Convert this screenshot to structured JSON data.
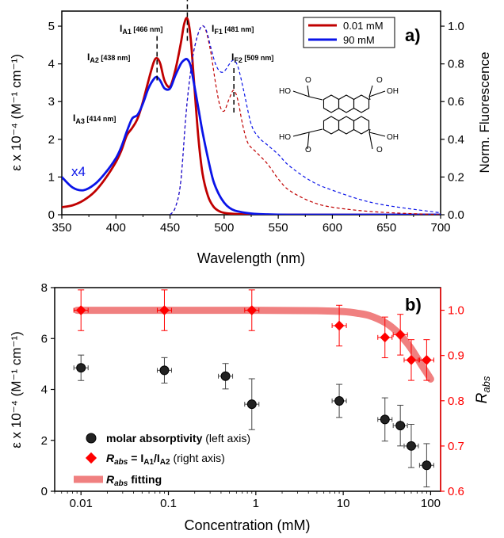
{
  "colors": {
    "red": "#c00000",
    "blue": "#0a14e8",
    "diamond": "#ff0000",
    "fit": "#f08080",
    "axis_right_b": "#ff0000"
  },
  "chart_data": [
    {
      "type": "line",
      "panel_label": "a)",
      "xlabel": "Wavelength (nm)",
      "ylabel_left": "ε x 10⁻⁴ (M⁻¹ cm⁻¹)",
      "ylabel_right": "Norm. Fluorescence",
      "xlim": [
        350,
        700
      ],
      "ylim_left": [
        0,
        5.4
      ],
      "ylim_right": [
        0,
        1.08
      ],
      "xticks": [
        "350",
        "400",
        "450",
        "500",
        "550",
        "600",
        "650",
        "700"
      ],
      "yticks_left": [
        "0",
        "1",
        "2",
        "3",
        "4",
        "5"
      ],
      "yticks_right": [
        "0.0",
        "0.2",
        "0.4",
        "0.6",
        "0.8",
        "1.0"
      ],
      "legend": [
        "0.01 mM",
        "90 mM"
      ],
      "blue_note": "x4",
      "peak_labels": [
        {
          "main": "I",
          "sub": "A1",
          "nm": " [466 nm]"
        },
        {
          "main": "I",
          "sub": "A2",
          "nm": " [438 nm]"
        },
        {
          "main": "I",
          "sub": "A3",
          "nm": " [414 nm]"
        },
        {
          "main": "I",
          "sub": "F1",
          "nm": " [481 nm]"
        },
        {
          "main": "I",
          "sub": "F2",
          "nm": " [509 nm]"
        }
      ],
      "peak_markers_nm": [
        466,
        438,
        509
      ],
      "series": [
        {
          "name": "0.01 mM",
          "kind": "absorbance",
          "x": [
            350,
            360,
            370,
            380,
            390,
            400,
            405,
            410,
            415,
            420,
            425,
            430,
            435,
            438,
            441,
            445,
            450,
            455,
            460,
            463,
            466,
            469,
            472,
            476,
            480,
            485,
            490,
            495,
            500,
            510,
            520,
            540,
            560,
            600,
            700
          ],
          "y": [
            0.2,
            0.25,
            0.38,
            0.6,
            0.95,
            1.4,
            1.7,
            2.1,
            2.3,
            2.55,
            3.0,
            3.55,
            4.05,
            4.15,
            4.0,
            3.55,
            3.4,
            3.85,
            4.55,
            5.05,
            5.2,
            4.7,
            3.6,
            2.1,
            1.1,
            0.5,
            0.22,
            0.1,
            0.05,
            0.02,
            0.01,
            0,
            0,
            0,
            0
          ]
        },
        {
          "name": "90 mM",
          "kind": "absorbance",
          "x": [
            350,
            360,
            370,
            380,
            390,
            400,
            405,
            410,
            415,
            420,
            425,
            430,
            435,
            438,
            441,
            445,
            450,
            455,
            460,
            463,
            466,
            469,
            472,
            476,
            480,
            485,
            490,
            495,
            500,
            505,
            510,
            520,
            530,
            540,
            560,
            600,
            700
          ],
          "y": [
            1.0,
            0.72,
            0.65,
            0.8,
            1.1,
            1.5,
            1.8,
            2.2,
            2.55,
            2.65,
            2.95,
            3.35,
            3.6,
            3.65,
            3.55,
            3.35,
            3.35,
            3.7,
            4.0,
            4.1,
            4.12,
            3.95,
            3.5,
            2.85,
            2.2,
            1.5,
            0.9,
            0.55,
            0.32,
            0.18,
            0.11,
            0.05,
            0.02,
            0.01,
            0,
            0,
            0
          ]
        },
        {
          "name": "0.01 mM",
          "kind": "fluorescence",
          "x": [
            450,
            455,
            460,
            465,
            470,
            474,
            478,
            481,
            484,
            488,
            492,
            496,
            500,
            505,
            509,
            513,
            517,
            522,
            530,
            540,
            550,
            560,
            580,
            600,
            640,
            700
          ],
          "y": [
            0,
            0.04,
            0.18,
            0.55,
            0.8,
            0.92,
            0.99,
            1.0,
            0.96,
            0.85,
            0.7,
            0.58,
            0.55,
            0.62,
            0.66,
            0.6,
            0.48,
            0.38,
            0.33,
            0.27,
            0.19,
            0.13,
            0.07,
            0.04,
            0.015,
            0
          ]
        },
        {
          "name": "90 mM",
          "kind": "fluorescence",
          "x": [
            450,
            455,
            460,
            465,
            470,
            474,
            478,
            481,
            484,
            488,
            492,
            496,
            500,
            505,
            509,
            513,
            518,
            525,
            532,
            540,
            550,
            560,
            580,
            600,
            640,
            700
          ],
          "y": [
            0,
            0.04,
            0.18,
            0.55,
            0.8,
            0.92,
            0.99,
            1.0,
            0.97,
            0.88,
            0.8,
            0.76,
            0.76,
            0.8,
            0.82,
            0.78,
            0.66,
            0.48,
            0.41,
            0.37,
            0.32,
            0.26,
            0.18,
            0.13,
            0.06,
            0.01
          ]
        }
      ]
    },
    {
      "type": "scatter",
      "panel_label": "b)",
      "xlabel": "Concentration (mM)",
      "ylabel_left": "ε x 10⁻⁴ (M⁻¹ cm⁻¹)",
      "ylabel_right": "R",
      "ylabel_right_sub": "abs",
      "xscale": "log",
      "xlim": [
        0.005,
        130
      ],
      "ylim_left": [
        0,
        8
      ],
      "ylim_right": [
        0.6,
        1.05
      ],
      "xticks": [
        "0.01",
        "0.1",
        "1",
        "10",
        "100"
      ],
      "yticks_left": [
        "0",
        "2",
        "4",
        "6",
        "8"
      ],
      "yticks_right": [
        "0.6",
        "0.7",
        "0.8",
        "0.9",
        "1.0"
      ],
      "legend": [
        {
          "bold": "molar absorptivity",
          "normal": " (left axis)"
        },
        {
          "boldital": "R",
          "sub": "abs",
          "bold": " = I",
          "sub2": "A1",
          "bold2": "/I",
          "sub3": "A2",
          "normal": " (right axis)"
        },
        {
          "boldital": "R",
          "sub": "abs",
          "bold": " fitting"
        }
      ],
      "series": [
        {
          "name": "molar absorptivity",
          "x": [
            0.01,
            0.09,
            0.45,
            0.9,
            9,
            30,
            45,
            60,
            90
          ],
          "y": [
            4.85,
            4.75,
            4.52,
            3.42,
            3.55,
            2.82,
            2.58,
            1.78,
            1.02
          ],
          "yerr": [
            0.5,
            0.5,
            0.5,
            1.0,
            0.65,
            0.85,
            0.8,
            0.85,
            0.85
          ]
        },
        {
          "name": "R abs",
          "x": [
            0.01,
            0.09,
            0.9,
            9,
            30,
            45,
            60,
            90
          ],
          "y": [
            1.0,
            1.0,
            1.0,
            0.966,
            0.94,
            0.946,
            0.89,
            0.89
          ],
          "yerr": [
            0.045,
            0.045,
            0.045,
            0.045,
            0.045,
            0.045,
            0.045,
            0.045
          ]
        },
        {
          "name": "R abs fitting",
          "x": [
            0.009,
            0.1,
            1,
            5,
            10,
            15,
            20,
            30,
            40,
            50,
            60,
            70,
            80,
            90,
            100
          ],
          "y": [
            1.0,
            1.0,
            1.0,
            0.999,
            0.997,
            0.993,
            0.988,
            0.973,
            0.955,
            0.935,
            0.915,
            0.895,
            0.877,
            0.862,
            0.848
          ]
        }
      ]
    }
  ]
}
